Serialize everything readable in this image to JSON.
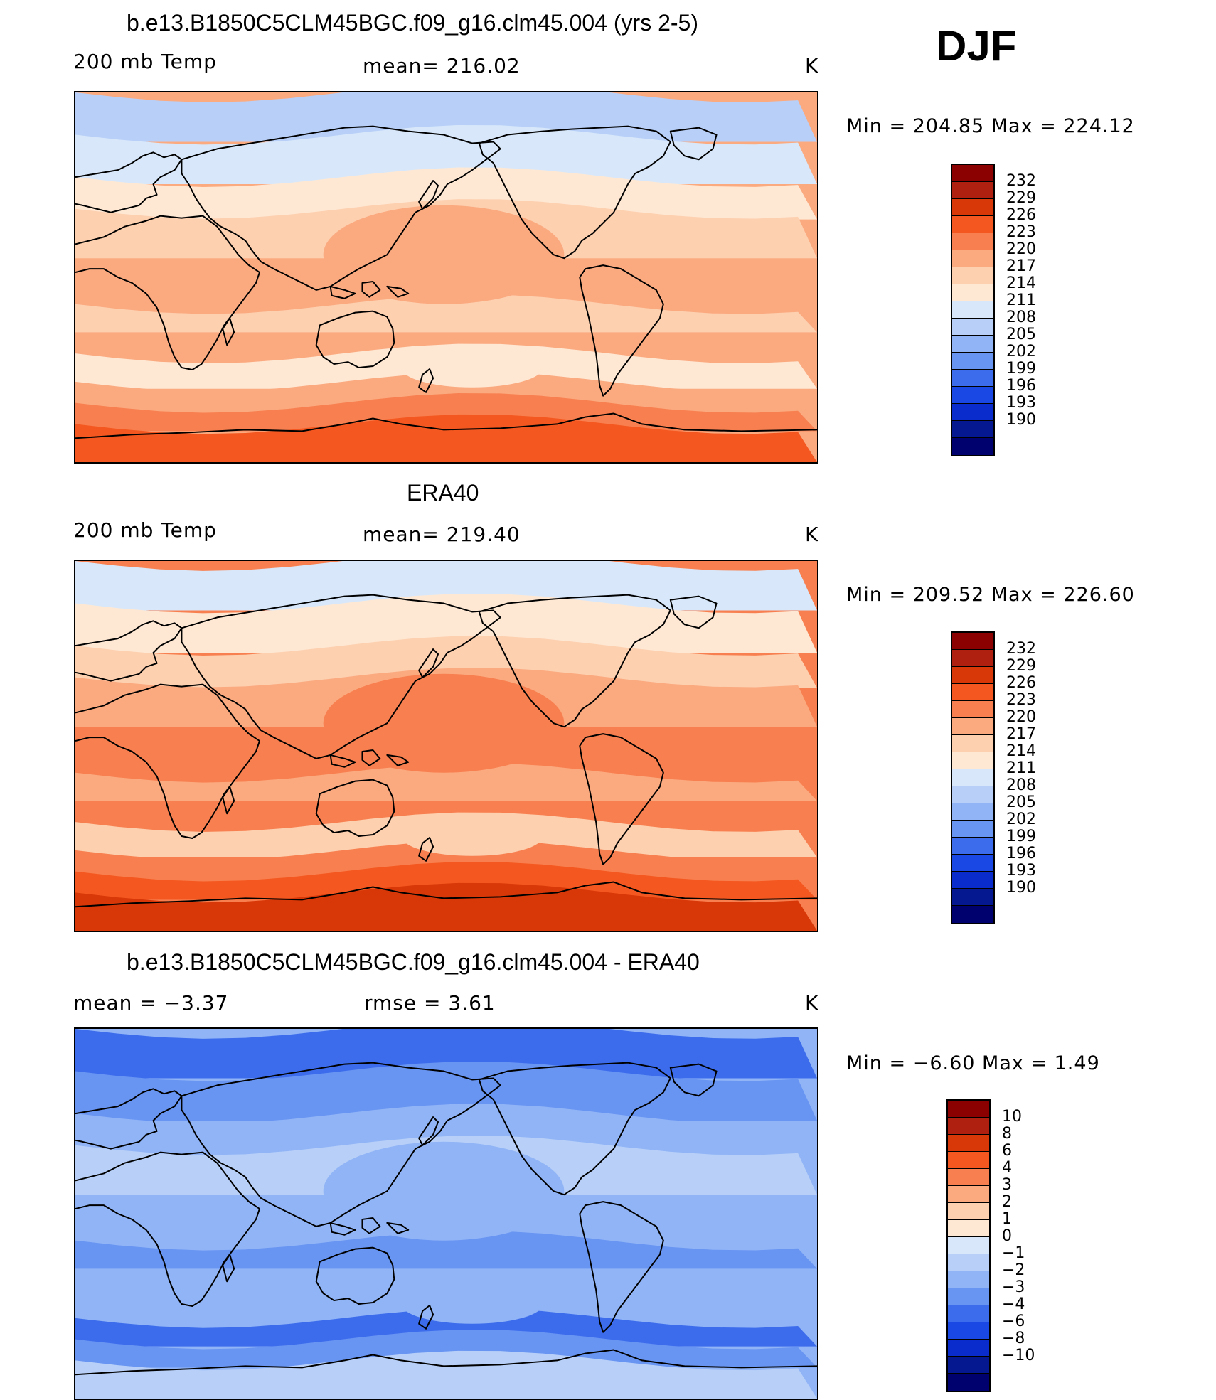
{
  "season": "DJF",
  "units": "K",
  "panels": [
    {
      "id": "model",
      "title": "b.e13.B1850C5CLM45BGC.f09_g16.clm45.004 (yrs 2-5)",
      "left_label": "200 mb Temp",
      "center_label": "mean=  216.02",
      "right_label": "K",
      "minmax": "Min  =  204.85  Max  =  224.12"
    },
    {
      "id": "obs",
      "title": "ERA40",
      "left_label": "200 mb Temp",
      "center_label": "mean=  219.40",
      "right_label": "K",
      "minmax": "Min  =  209.52  Max  =  226.60"
    },
    {
      "id": "diff",
      "title": "b.e13.B1850C5CLM45BGC.f09_g16.clm45.004 - ERA40",
      "left_label": "mean  =    −3.37",
      "center_label": "rmse  =     3.61",
      "right_label": "K",
      "minmax": "Min  =    −6.60  Max  =     1.49"
    }
  ],
  "colorbars": {
    "temp": {
      "colors": [
        "#8b0000",
        "#b02010",
        "#d83808",
        "#f45820",
        "#f88050",
        "#fbaa80",
        "#fdd0b0",
        "#fee8d4",
        "#d8e8fa",
        "#b8d0f8",
        "#90b4f6",
        "#6894f2",
        "#3c6cec",
        "#1a48e4",
        "#0a2ccc",
        "#061890",
        "#00006e"
      ],
      "labels": [
        "232",
        "229",
        "226",
        "223",
        "220",
        "217",
        "214",
        "211",
        "208",
        "205",
        "202",
        "199",
        "196",
        "193",
        "190"
      ]
    },
    "diff": {
      "colors": [
        "#8b0000",
        "#b02010",
        "#d83808",
        "#f45820",
        "#f88050",
        "#fbaa80",
        "#fdd0b0",
        "#fee8d4",
        "#d8e8fa",
        "#b8d0f8",
        "#90b4f6",
        "#6894f2",
        "#3c6cec",
        "#1a48e4",
        "#0a2ccc",
        "#061890",
        "#00006e"
      ],
      "labels": [
        "10",
        "8",
        "6",
        "4",
        "3",
        "2",
        "1",
        "0",
        "−1",
        "−2",
        "−3",
        "−4",
        "−6",
        "−8",
        "−10"
      ]
    }
  },
  "map_colors": {
    "model": [
      "#b8d0f8",
      "#d8e8fa",
      "#fee8d4",
      "#fdd0b0",
      "#fbaa80",
      "#fdd0b0",
      "#fbaa80",
      "#f88050",
      "#f45820"
    ],
    "obs": [
      "#d8e8fa",
      "#fee8d4",
      "#fdd0b0",
      "#fbaa80",
      "#f88050",
      "#fbaa80",
      "#f88050",
      "#f45820",
      "#d83808"
    ],
    "diff": [
      "#3c6cec",
      "#6894f2",
      "#90b4f6",
      "#b8d0f8",
      "#90b4f6",
      "#6894f2",
      "#3c6cec",
      "#6894f2",
      "#b8d0f8"
    ]
  }
}
